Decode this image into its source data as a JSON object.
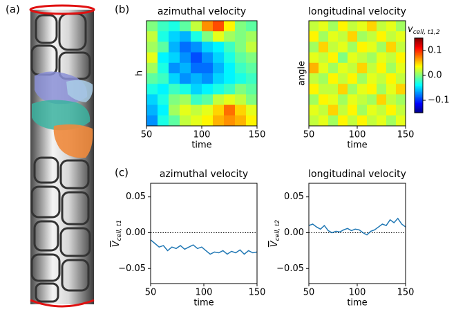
{
  "panels": {
    "a": "(a)",
    "b": "(b)",
    "c": "(c)"
  },
  "chart_data": [
    {
      "type": "heatmap",
      "title": "azimuthal velocity",
      "x_label": "time",
      "y_label": "h",
      "xlim": [
        50,
        150
      ],
      "xticks": [
        50,
        100,
        150
      ],
      "clim": [
        -0.15,
        0.15
      ],
      "z": [
        [
          0.0,
          -0.02,
          -0.03,
          -0.01,
          0.02,
          0.07,
          0.09,
          0.04,
          0.0,
          -0.01
        ],
        [
          0.02,
          -0.03,
          -0.05,
          -0.06,
          -0.03,
          0.0,
          0.03,
          0.01,
          0.0,
          0.01
        ],
        [
          0.01,
          -0.01,
          -0.06,
          -0.08,
          -0.07,
          -0.05,
          -0.04,
          -0.02,
          0.0,
          0.02
        ],
        [
          0.03,
          -0.04,
          -0.05,
          -0.07,
          -0.09,
          -0.07,
          -0.05,
          -0.03,
          -0.01,
          0.0
        ],
        [
          0.01,
          -0.03,
          -0.07,
          -0.06,
          -0.08,
          -0.08,
          -0.06,
          -0.04,
          -0.02,
          -0.01
        ],
        [
          -0.01,
          -0.02,
          -0.05,
          -0.07,
          -0.06,
          -0.07,
          -0.05,
          -0.04,
          -0.03,
          -0.02
        ],
        [
          -0.03,
          -0.04,
          -0.02,
          -0.03,
          -0.05,
          -0.04,
          -0.03,
          -0.02,
          0.0,
          -0.01
        ],
        [
          -0.05,
          -0.03,
          0.0,
          0.01,
          -0.02,
          -0.01,
          0.02,
          0.03,
          0.02,
          0.0
        ],
        [
          -0.06,
          -0.04,
          0.01,
          0.03,
          0.02,
          0.03,
          0.05,
          0.08,
          0.05,
          0.03
        ],
        [
          -0.07,
          -0.03,
          -0.01,
          0.02,
          0.03,
          0.04,
          0.06,
          0.07,
          0.06,
          0.04
        ]
      ]
    },
    {
      "type": "heatmap",
      "title": "longitudinal velocity",
      "x_label": "time",
      "y_label": "angle",
      "xlim": [
        50,
        150
      ],
      "xticks": [
        50,
        100,
        150
      ],
      "clim": [
        -0.15,
        0.15
      ],
      "z": [
        [
          0.02,
          0.03,
          0.01,
          0.04,
          0.02,
          0.03,
          0.05,
          0.02,
          0.03,
          0.01
        ],
        [
          0.04,
          0.01,
          0.03,
          0.02,
          0.05,
          0.01,
          0.02,
          0.04,
          0.02,
          0.03
        ],
        [
          0.01,
          0.05,
          0.02,
          0.03,
          0.01,
          0.04,
          0.03,
          0.01,
          0.05,
          0.02
        ],
        [
          0.03,
          0.02,
          0.04,
          0.0,
          0.03,
          0.02,
          0.01,
          0.03,
          0.02,
          0.04
        ],
        [
          0.06,
          0.03,
          0.01,
          0.03,
          0.02,
          0.05,
          0.02,
          0.04,
          0.01,
          0.03
        ],
        [
          0.02,
          0.01,
          0.04,
          0.02,
          0.04,
          0.01,
          0.03,
          0.02,
          0.04,
          0.02
        ],
        [
          0.04,
          0.02,
          0.02,
          0.05,
          0.01,
          0.03,
          0.04,
          0.01,
          0.03,
          0.05
        ],
        [
          0.01,
          0.04,
          0.03,
          0.01,
          0.03,
          0.02,
          0.01,
          0.05,
          0.02,
          0.01
        ],
        [
          0.03,
          0.02,
          0.05,
          0.02,
          0.04,
          0.01,
          0.03,
          0.02,
          0.04,
          0.02
        ],
        [
          0.02,
          0.03,
          0.01,
          0.04,
          0.02,
          0.04,
          0.02,
          0.03,
          0.01,
          0.03
        ]
      ],
      "colorbar": {
        "label": "v",
        "label_sub": "cell, t1,2",
        "ticks": [
          {
            "value": -0.1,
            "label": "−0.1"
          },
          {
            "value": 0.0,
            "label": "0.0"
          },
          {
            "value": 0.1,
            "label": "0.1"
          }
        ]
      }
    },
    {
      "type": "line",
      "title": "azimuthal velocity",
      "x_label": "time",
      "y_label": "V",
      "y_label_sub": "cell, t1",
      "xlim": [
        50,
        150
      ],
      "xticks": [
        50,
        100,
        150
      ],
      "ylim": [
        -0.071,
        0.069
      ],
      "yticks": [
        {
          "value": -0.05,
          "label": "−0.05"
        },
        {
          "value": 0.0,
          "label": "0.00"
        },
        {
          "value": 0.05,
          "label": "0.05"
        }
      ],
      "zero_line": true,
      "x": [
        50,
        54,
        58,
        62,
        66,
        70,
        74,
        78,
        82,
        86,
        90,
        94,
        98,
        102,
        106,
        110,
        114,
        118,
        122,
        126,
        130,
        134,
        138,
        142,
        146,
        150
      ],
      "series": [
        {
          "color": "#1f77b4",
          "values": [
            -0.01,
            -0.015,
            -0.02,
            -0.018,
            -0.025,
            -0.02,
            -0.022,
            -0.018,
            -0.023,
            -0.02,
            -0.017,
            -0.022,
            -0.02,
            -0.025,
            -0.03,
            -0.027,
            -0.028,
            -0.025,
            -0.03,
            -0.026,
            -0.028,
            -0.024,
            -0.03,
            -0.025,
            -0.028,
            -0.027
          ]
        }
      ]
    },
    {
      "type": "line",
      "title": "longitudinal velocity",
      "x_label": "time",
      "y_label": "V",
      "y_label_sub": "cell, t2",
      "xlim": [
        50,
        150
      ],
      "xticks": [
        50,
        100,
        150
      ],
      "ylim": [
        -0.071,
        0.069
      ],
      "yticks": [
        {
          "value": -0.05,
          "label": "−0.05"
        },
        {
          "value": 0.0,
          "label": "0.00"
        },
        {
          "value": 0.05,
          "label": "0.05"
        }
      ],
      "zero_line": true,
      "x": [
        50,
        54,
        58,
        62,
        66,
        70,
        74,
        78,
        82,
        86,
        90,
        94,
        98,
        102,
        106,
        110,
        114,
        118,
        122,
        126,
        130,
        134,
        138,
        142,
        146,
        150
      ],
      "series": [
        {
          "color": "#1f77b4",
          "values": [
            0.01,
            0.012,
            0.008,
            0.005,
            0.01,
            0.003,
            0.0,
            0.002,
            0.001,
            0.004,
            0.006,
            0.003,
            0.005,
            0.004,
            0.0,
            -0.003,
            0.002,
            0.004,
            0.008,
            0.012,
            0.01,
            0.018,
            0.014,
            0.02,
            0.012,
            0.008
          ]
        }
      ]
    }
  ]
}
